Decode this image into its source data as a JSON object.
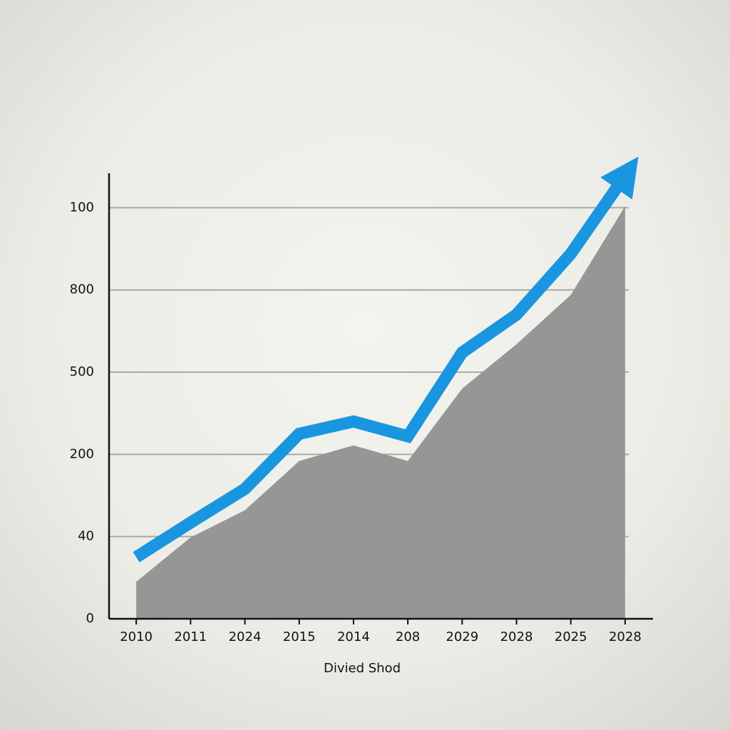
{
  "chart_data": {
    "type": "line-area",
    "x_label": "Divied Shod",
    "categories": [
      "2010",
      "2011",
      "2024",
      "2015",
      "2014",
      "208",
      "2029",
      "2028",
      "2025",
      "2028"
    ],
    "series": [
      {
        "color": "#1a96e0",
        "values": [
          0.75,
          1.17,
          1.58,
          2.25,
          2.4,
          2.22,
          3.24,
          3.7,
          4.44,
          5.39
        ]
      },
      {
        "color": "#969696",
        "values": [
          0.45,
          0.99,
          1.32,
          1.92,
          2.11,
          1.92,
          2.8,
          3.34,
          3.94,
          5.02
        ]
      }
    ],
    "ylim": [
      0,
      5.42
    ],
    "yticks": [
      0,
      {
        "value": 1,
        "label": "40"
      },
      {
        "value": 2,
        "label": "200"
      },
      {
        "value": 3,
        "label": "500"
      },
      {
        "value": 4,
        "label": "800"
      },
      {
        "value": 5,
        "label": "100"
      }
    ],
    "grid": true
  }
}
